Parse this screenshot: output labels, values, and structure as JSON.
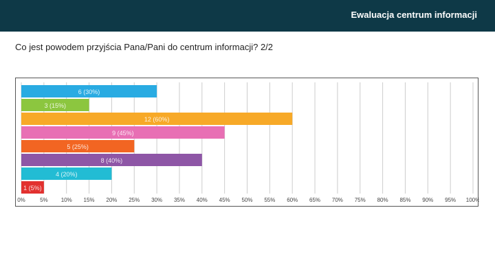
{
  "header": {
    "title": "Ewaluacja centrum informacji"
  },
  "question": {
    "text": "Co jest powodem przyjścia Pana/Pani do centrum informacji?  2/2"
  },
  "chart_data": {
    "type": "bar",
    "orientation": "horizontal",
    "title": "",
    "xlabel": "",
    "ylabel": "",
    "xlim": [
      0,
      100
    ],
    "grid": true,
    "ticks": [
      "0%",
      "5%",
      "10%",
      "15%",
      "20%",
      "25%",
      "30%",
      "35%",
      "40%",
      "45%",
      "50%",
      "55%",
      "60%",
      "65%",
      "70%",
      "75%",
      "80%",
      "85%",
      "90%",
      "95%",
      "100%"
    ],
    "values": [
      30,
      15,
      60,
      45,
      25,
      40,
      20,
      5
    ],
    "data_labels": [
      "6 (30%)",
      "3 (15%)",
      "12 (60%)",
      "9 (45%)",
      "5 (25%)",
      "8 (40%)",
      "4 (20%)",
      "1 (5%)"
    ],
    "colors": [
      "#29abe2",
      "#8cc63f",
      "#f7a928",
      "#e86fb4",
      "#f26522",
      "#8e56a6",
      "#22bcd4",
      "#e2312f"
    ]
  }
}
